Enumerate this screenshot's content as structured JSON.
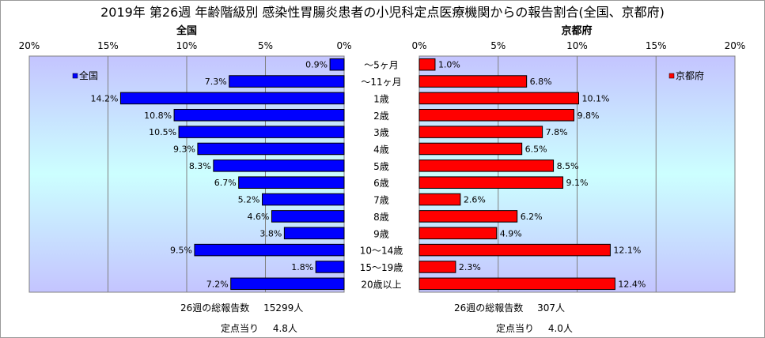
{
  "title": "2019年 第26週 年齢階級別 感染性胃腸炎患者の小児科定点医療機関からの報告割合(全国、京都府)",
  "colors": {
    "national": "#0000ff",
    "kyoto": "#ff0000",
    "plot_top": "#c4c4ff",
    "plot_mid": "#ccffff",
    "plot_bottom": "#c4c4ff"
  },
  "chart_data": [
    {
      "type": "bar",
      "orientation": "horizontal",
      "direction": "right-to-left",
      "title": "全国",
      "legend": "全国",
      "legend_position": "top-left",
      "xlim": [
        0,
        20
      ],
      "ticks": [
        "20%",
        "15%",
        "10%",
        "5%",
        "0%"
      ],
      "tick_values": [
        20,
        15,
        10,
        5,
        0
      ],
      "categories": [
        "～5ヶ月",
        "～11ヶ月",
        "1歳",
        "2歳",
        "3歳",
        "4歳",
        "5歳",
        "6歳",
        "7歳",
        "8歳",
        "9歳",
        "10～14歳",
        "15～19歳",
        "20歳以上"
      ],
      "values": [
        0.9,
        7.3,
        14.2,
        10.8,
        10.5,
        9.3,
        8.3,
        6.7,
        5.2,
        4.6,
        3.8,
        9.5,
        1.8,
        7.2
      ],
      "labels": [
        "0.9%",
        "7.3%",
        "14.2%",
        "10.8%",
        "10.5%",
        "9.3%",
        "8.3%",
        "6.7%",
        "5.2%",
        "4.6%",
        "3.8%",
        "9.5%",
        "1.8%",
        "7.2%"
      ]
    },
    {
      "type": "bar",
      "orientation": "horizontal",
      "direction": "left-to-right",
      "title": "京都府",
      "legend": "京都府",
      "legend_position": "top-right",
      "xlim": [
        0,
        20
      ],
      "ticks": [
        "0%",
        "5%",
        "10%",
        "15%",
        "20%"
      ],
      "tick_values": [
        0,
        5,
        10,
        15,
        20
      ],
      "categories": [
        "～5ヶ月",
        "～11ヶ月",
        "1歳",
        "2歳",
        "3歳",
        "4歳",
        "5歳",
        "6歳",
        "7歳",
        "8歳",
        "9歳",
        "10～14歳",
        "15～19歳",
        "20歳以上"
      ],
      "values": [
        1.0,
        6.8,
        10.1,
        9.8,
        7.8,
        6.5,
        8.5,
        9.1,
        2.6,
        6.2,
        4.9,
        12.1,
        2.3,
        12.4
      ],
      "labels": [
        "1.0%",
        "6.8%",
        "10.1%",
        "9.8%",
        "7.8%",
        "6.5%",
        "8.5%",
        "9.1%",
        "2.6%",
        "6.2%",
        "4.9%",
        "12.1%",
        "2.3%",
        "12.4%"
      ]
    }
  ],
  "footer": {
    "national": {
      "total_label": "26週の総報告数",
      "total_value": "15299人",
      "per_label": "定点当り",
      "per_value": "4.8人"
    },
    "kyoto": {
      "total_label": "26週の総報告数",
      "total_value": "307人",
      "per_label": "定点当り",
      "per_value": "4.0人"
    }
  }
}
